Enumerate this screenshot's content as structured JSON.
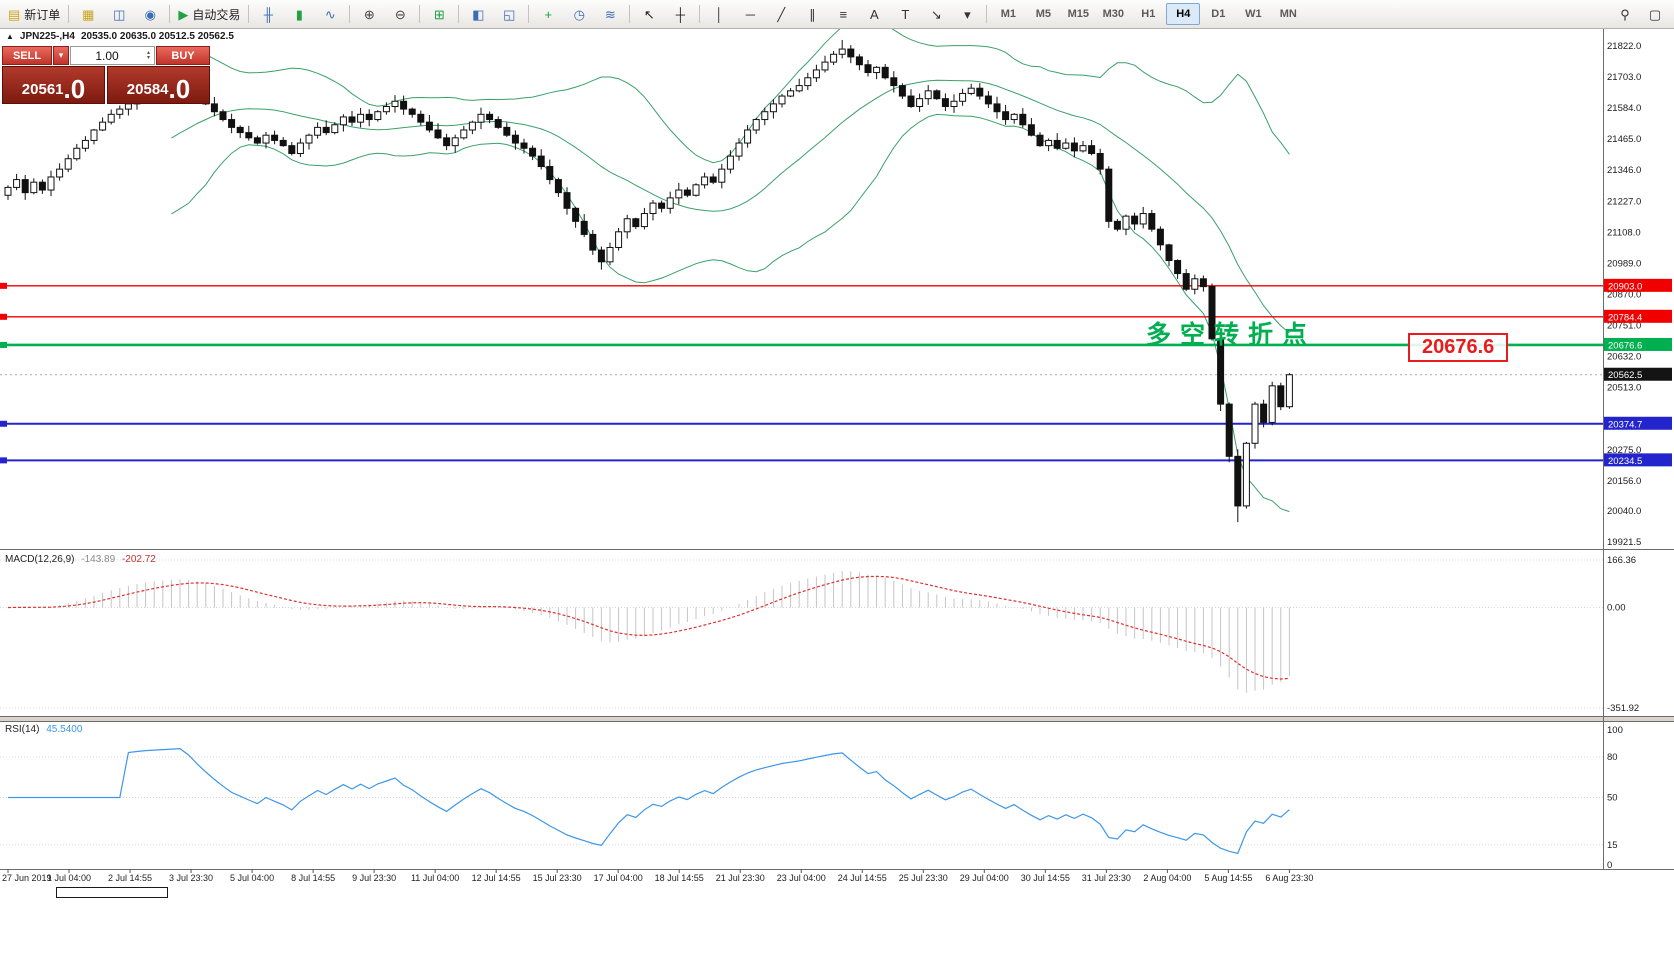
{
  "toolbar": {
    "groups": [
      {
        "items": [
          {
            "name": "new-order",
            "glyph": "▤",
            "color": "#caa41e",
            "label": "新订单"
          }
        ]
      },
      {
        "items": [
          {
            "name": "charts",
            "glyph": "▦",
            "color": "#caa41e"
          },
          {
            "name": "profiles",
            "glyph": "◫",
            "color": "#3b6db5"
          },
          {
            "name": "data-window",
            "glyph": "◉",
            "color": "#3b6db5"
          }
        ]
      },
      {
        "items": [
          {
            "name": "auto-trading",
            "glyph": "▶",
            "color": "#21a044",
            "label": "自动交易"
          }
        ]
      },
      {
        "items": [
          {
            "name": "bar-chart",
            "glyph": "╫",
            "color": "#3b6db5"
          },
          {
            "name": "candlestick-chart",
            "glyph": "▮",
            "color": "#21a044"
          },
          {
            "name": "line-chart",
            "glyph": "∿",
            "color": "#3b6db5"
          }
        ]
      },
      {
        "items": [
          {
            "name": "zoom-in",
            "glyph": "⊕",
            "color": "#444444"
          },
          {
            "name": "zoom-out",
            "glyph": "⊖",
            "color": "#444444"
          }
        ]
      },
      {
        "items": [
          {
            "name": "tile-windows",
            "glyph": "⊞",
            "color": "#21a044"
          }
        ]
      },
      {
        "items": [
          {
            "name": "arrange-vertical",
            "glyph": "◧",
            "color": "#3b6db5"
          },
          {
            "name": "arrange-horizontal",
            "glyph": "◱",
            "color": "#3b6db5"
          }
        ]
      },
      {
        "items": [
          {
            "name": "indicators",
            "glyph": "+",
            "color": "#21a044"
          },
          {
            "name": "periods",
            "glyph": "◷",
            "color": "#3b6db5"
          },
          {
            "name": "templates",
            "glyph": "≋",
            "color": "#3b6db5"
          }
        ]
      },
      {
        "items": [
          {
            "name": "cursor",
            "glyph": "↖",
            "color": "#222222"
          },
          {
            "name": "crosshair",
            "glyph": "┼",
            "color": "#222222"
          }
        ]
      },
      {
        "items": [
          {
            "name": "vertical-line",
            "glyph": "│",
            "color": "#333333"
          },
          {
            "name": "horizontal-line",
            "glyph": "─",
            "color": "#333333"
          },
          {
            "name": "trendline",
            "glyph": "╱",
            "color": "#333333"
          },
          {
            "name": "equidistant-channel",
            "glyph": "∥",
            "color": "#333333"
          },
          {
            "name": "fibonacci",
            "glyph": "≡",
            "color": "#333333"
          },
          {
            "name": "text-label",
            "glyph": "A",
            "color": "#333333"
          },
          {
            "name": "text-annotation",
            "glyph": "T",
            "color": "#333333"
          },
          {
            "name": "arrow-tool",
            "glyph": "↘",
            "color": "#333333"
          },
          {
            "name": "more-tools",
            "glyph": "▾",
            "color": "#333333"
          }
        ]
      }
    ],
    "timeframes": {
      "items": [
        "M1",
        "M5",
        "M15",
        "M30",
        "H1",
        "H4",
        "D1",
        "W1",
        "MN"
      ],
      "active": "H4"
    },
    "right_items": [
      {
        "name": "search",
        "glyph": "⚲"
      },
      {
        "name": "window-layout",
        "glyph": "▢"
      }
    ]
  },
  "one_click": {
    "sell_label": "SELL",
    "buy_label": "BUY",
    "volume": "1.00",
    "sell_price": "20561",
    "sell_price_frac": ".0",
    "buy_price": "20584",
    "buy_price_frac": ".0"
  },
  "chart_header": {
    "symbol": "JPN225-,H4",
    "ohlc": "20535.0 20635.0 20512.5 20562.5"
  },
  "price_axis": {
    "min": 19895,
    "max": 21883,
    "labels": [
      "21822.0",
      "21703.0",
      "21584.0",
      "21465.0",
      "21346.0",
      "21227.0",
      "21108.0",
      "20989.0",
      "20870.0",
      "20751.0",
      "20632.0",
      "20513.0",
      "20275.0",
      "20156.0",
      "20040.0",
      "19921.5"
    ]
  },
  "badges": [
    {
      "label": "20903.0",
      "value": 20903.0,
      "color": "#f00000"
    },
    {
      "label": "20784.4",
      "value": 20784.4,
      "color": "#f00000"
    },
    {
      "label": "20676.6",
      "value": 20676.6,
      "color": "#00b050"
    },
    {
      "label": "20562.5",
      "value": 20562.5,
      "color": "#141414"
    },
    {
      "label": "20374.7",
      "value": 20374.7,
      "color": "#2424cc"
    },
    {
      "label": "20234.5",
      "value": 20234.5,
      "color": "#2424cc"
    }
  ],
  "hlines": [
    {
      "label": "20903.0",
      "value": 20903.0,
      "color": "#f00000",
      "width": 1.4
    },
    {
      "label": "20784.4",
      "value": 20784.4,
      "color": "#f00000",
      "width": 1.4
    },
    {
      "label": "20676.6",
      "value": 20676.6,
      "color": "#00b050",
      "width": 2.6
    },
    {
      "label": "20374.7",
      "value": 20374.7,
      "color": "#2424cc",
      "width": 2
    },
    {
      "label": "20234.5",
      "value": 20234.5,
      "color": "#2424cc",
      "width": 2
    }
  ],
  "current_price": {
    "label": "20562.5",
    "value": 20562.5
  },
  "macd": {
    "name": "MACD(12,26,9)",
    "main_value": "-143.89",
    "signal_value": "-202.72",
    "fast": 12,
    "slow": 26,
    "signal": 9,
    "axis_labels": [
      "166.36",
      "0.00",
      "-351.92"
    ],
    "axis_values": [
      166.36,
      0,
      -351.92
    ]
  },
  "rsi": {
    "name": "RSI(14)",
    "value": "45.5400",
    "period": 14,
    "axis_labels": [
      "100",
      "80",
      "50",
      "15",
      "0"
    ],
    "axis_values": [
      100,
      80,
      50,
      15,
      0
    ],
    "level_values": [
      80,
      50,
      15
    ]
  },
  "time_axis": {
    "labels": [
      "27 Jun 2019",
      "1 Jul 04:00",
      "2 Jul 14:55",
      "3 Jul 23:30",
      "5 Jul 04:00",
      "8 Jul 14:55",
      "9 Jul 23:30",
      "11 Jul 04:00",
      "12 Jul 14:55",
      "15 Jul 23:30",
      "17 Jul 04:00",
      "18 Jul 14:55",
      "21 Jul 23:30",
      "23 Jul 04:00",
      "24 Jul 14:55",
      "25 Jul 23:30",
      "29 Jul 04:00",
      "30 Jul 14:55",
      "31 Jul 23:30",
      "2 Aug 04:00",
      "5 Aug 14:55",
      "6 Aug 23:30"
    ]
  },
  "annotations": {
    "turning_point": "多空转折点",
    "price_callout": "20676.6"
  },
  "colors": {
    "bands": "#3aa06a",
    "macd_hist": "#c4c4c4",
    "macd_signal": "#e03030",
    "rsi_line": "#3d96e8",
    "bull": "#ffffff",
    "bear": "#111111",
    "outline": "#111111",
    "grid": "#d8d8d8",
    "hline_red": "#f00000",
    "hline_green": "#00b050",
    "hline_blue": "#2424cc"
  },
  "chart_data": {
    "type": "candlestick",
    "symbol": "JPN225-",
    "timeframe": "H4",
    "ohlc_display": {
      "open": "20535.0",
      "high": "20635.0",
      "low": "20512.5",
      "close": "20562.5"
    },
    "bollinger": {
      "period": 20,
      "deviation": 2
    },
    "closes": [
      21280,
      21310,
      21260,
      21300,
      21270,
      21320,
      21350,
      21390,
      21430,
      21460,
      21500,
      21530,
      21560,
      21580,
      21600,
      21620,
      21640,
      21650,
      21660,
      21670,
      21680,
      21660,
      21630,
      21600,
      21570,
      21540,
      21510,
      21490,
      21470,
      21450,
      21480,
      21460,
      21440,
      21410,
      21450,
      21480,
      21510,
      21490,
      21520,
      21550,
      21530,
      21560,
      21540,
      21570,
      21590,
      21610,
      21580,
      21560,
      21530,
      21500,
      21470,
      21440,
      21470,
      21500,
      21530,
      21560,
      21540,
      21510,
      21480,
      21450,
      21430,
      21400,
      21360,
      21310,
      21260,
      21200,
      21150,
      21100,
      21040,
      20995,
      21050,
      21110,
      21160,
      21130,
      21180,
      21220,
      21200,
      21240,
      21270,
      21250,
      21290,
      21320,
      21300,
      21350,
      21400,
      21450,
      21500,
      21540,
      21570,
      21600,
      21630,
      21650,
      21670,
      21700,
      21730,
      21760,
      21790,
      21810,
      21780,
      21750,
      21720,
      21740,
      21700,
      21670,
      21630,
      21590,
      21620,
      21650,
      21620,
      21590,
      21610,
      21640,
      21660,
      21630,
      21600,
      21570,
      21540,
      21560,
      21520,
      21480,
      21440,
      21460,
      21430,
      21450,
      21420,
      21440,
      21410,
      21350,
      21150,
      21120,
      21170,
      21140,
      21180,
      21120,
      21060,
      21000,
      20950,
      20890,
      20930,
      20900,
      20700,
      20450,
      20250,
      20060,
      20300,
      20450,
      20380,
      20520,
      20440,
      20562.5
    ]
  }
}
